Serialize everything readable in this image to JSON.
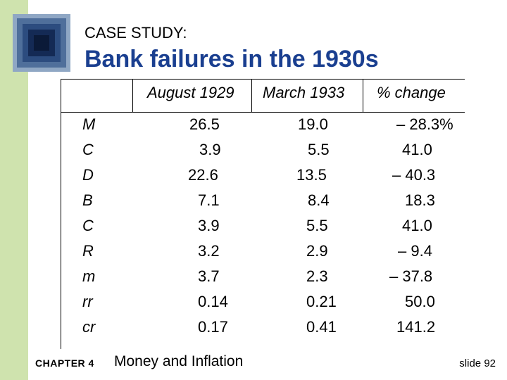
{
  "header": {
    "eyebrow": "CASE STUDY:",
    "title": "Bank failures in the 1930s"
  },
  "table": {
    "columns": [
      "",
      "August 1929",
      "March 1933",
      "% change"
    ],
    "rows": [
      {
        "label": "M",
        "aug1929": "26.5",
        "mar1933": "19.0",
        "change": "– 28.3%"
      },
      {
        "label": "C",
        "aug1929": "3.9",
        "mar1933": "5.5",
        "change": "41.0"
      },
      {
        "label": "D",
        "aug1929": "22.6",
        "mar1933": "13.5",
        "change": "– 40.3"
      },
      {
        "label": "B",
        "aug1929": "7.1",
        "mar1933": "8.4",
        "change": "18.3"
      },
      {
        "label": "C",
        "aug1929": "3.9",
        "mar1933": "5.5",
        "change": "41.0"
      },
      {
        "label": "R",
        "aug1929": "3.2",
        "mar1933": "2.9",
        "change": "– 9.4"
      },
      {
        "label": "m",
        "aug1929": "3.7",
        "mar1933": "2.3",
        "change": "– 37.8"
      },
      {
        "label": "rr",
        "aug1929": "0.14",
        "mar1933": "0.21",
        "change": "50.0"
      },
      {
        "label": "cr",
        "aug1929": "0.17",
        "mar1933": "0.41",
        "change": "141.2"
      }
    ]
  },
  "footer": {
    "chapter": "CHAPTER 4",
    "title": "Money and Inflation",
    "slide": "slide 92"
  },
  "colors": {
    "accent_bar": "#cfe3ae",
    "title": "#1a3f90",
    "logo": "#2c4c7f"
  }
}
